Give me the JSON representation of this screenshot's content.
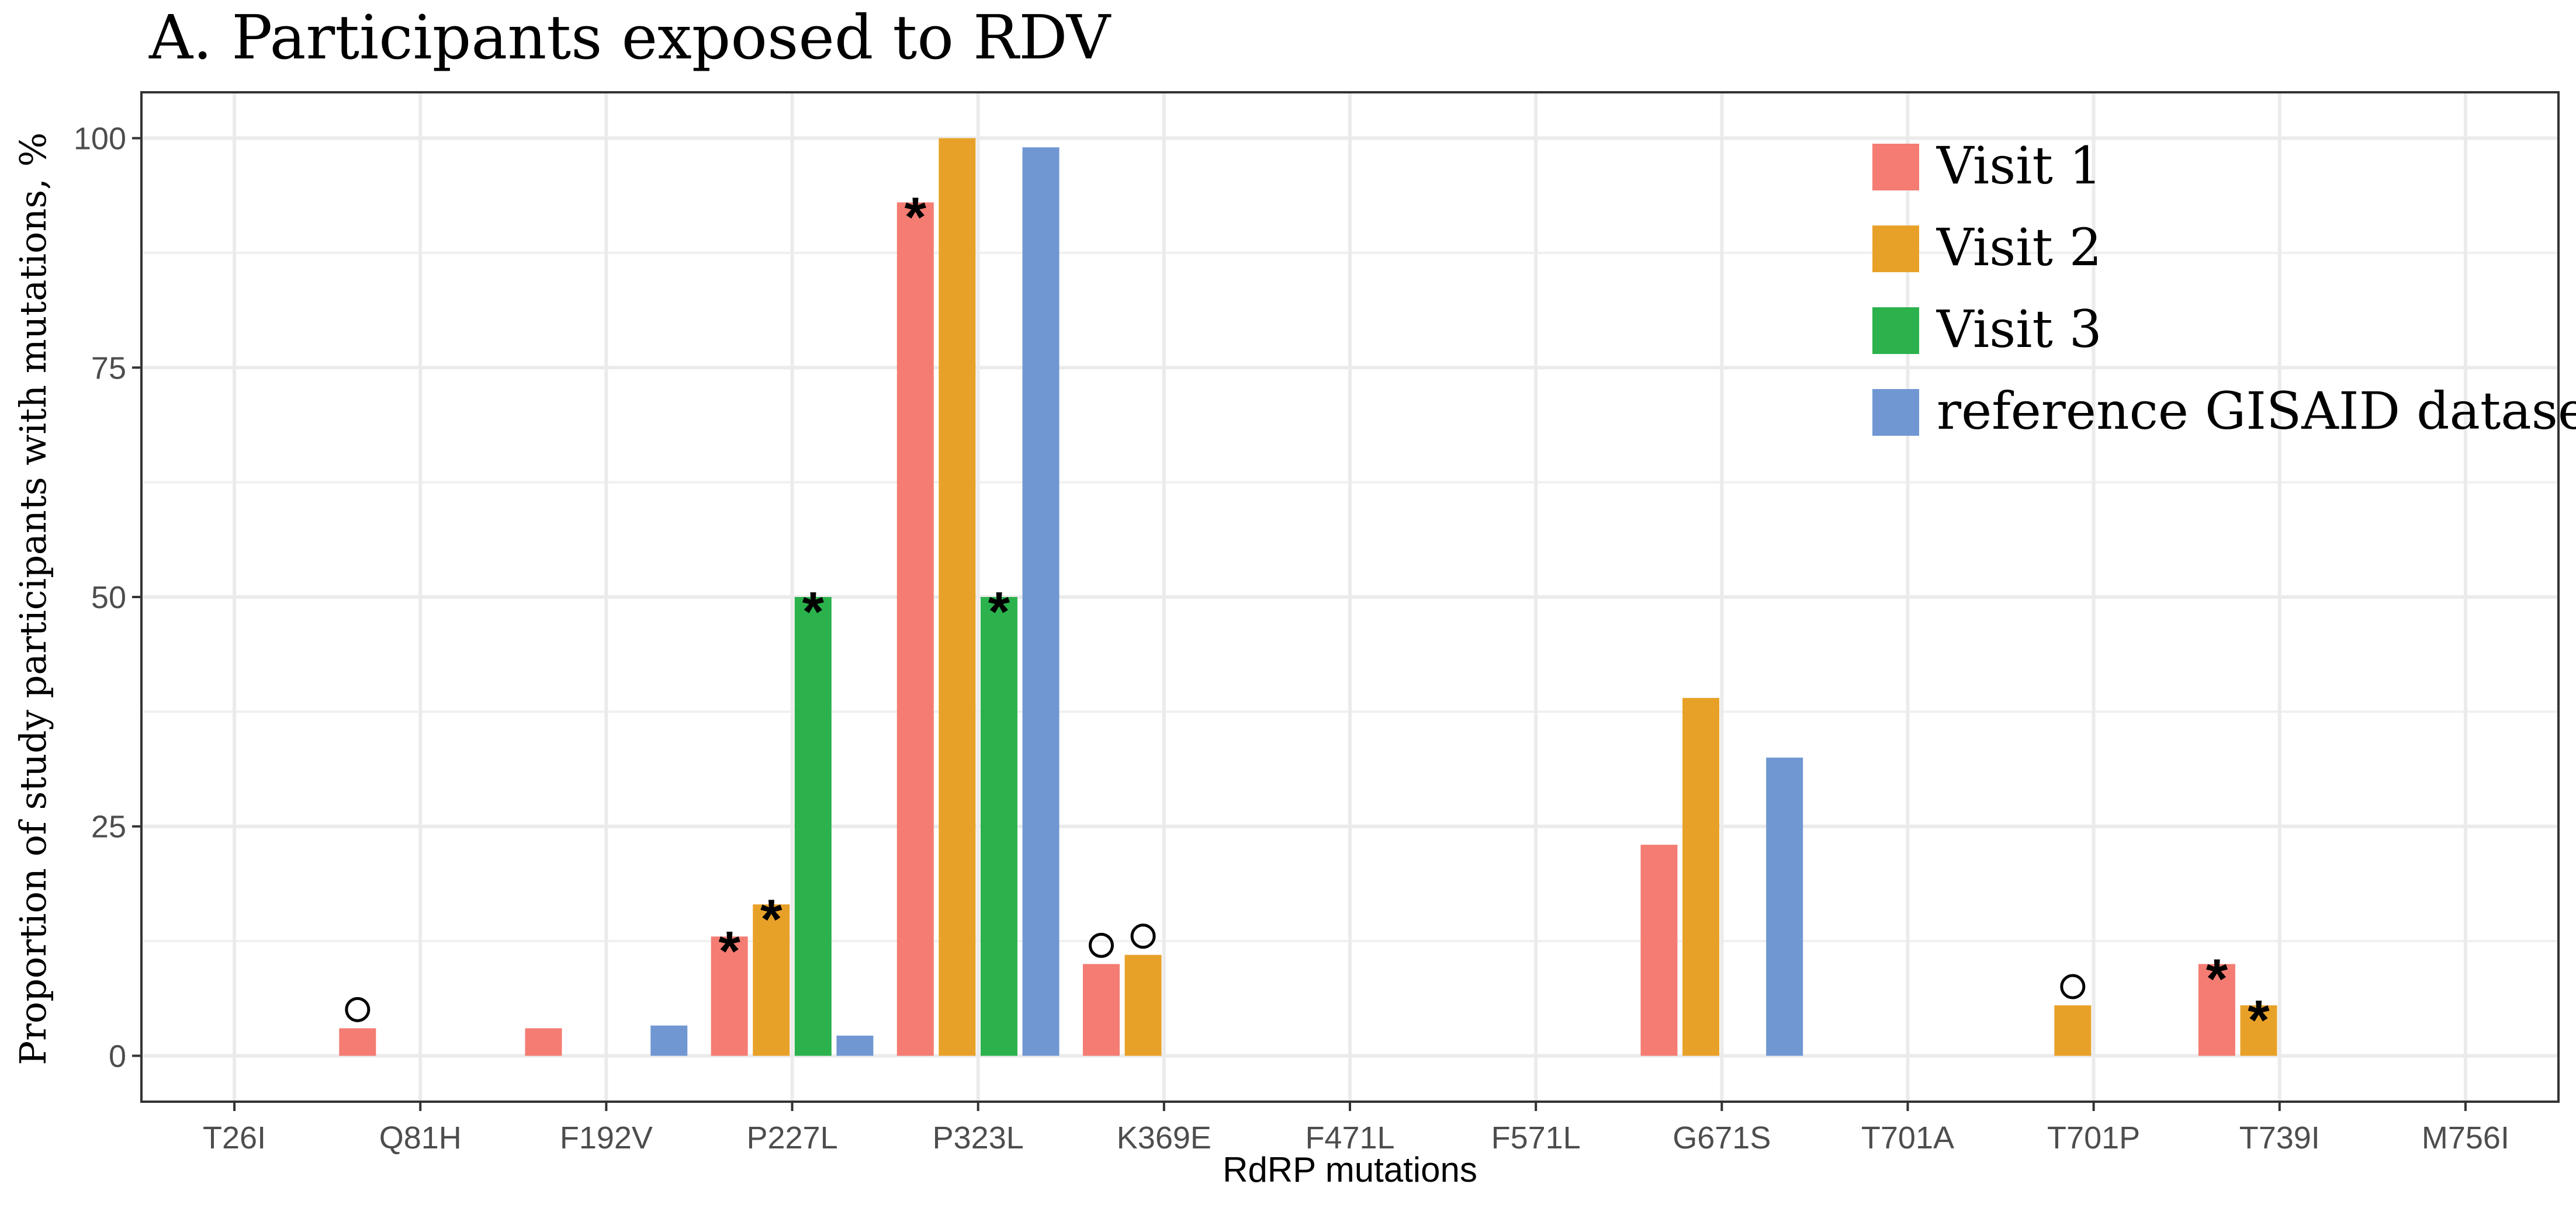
{
  "chart_data": {
    "type": "bar",
    "title": "A. Participants exposed to RDV",
    "xlabel": "RdRP mutations",
    "ylabel": "Proportion of study participants with mutations, %",
    "ylim": [
      -5,
      105
    ],
    "yticks": [
      0,
      25,
      50,
      75,
      100
    ],
    "grid": true,
    "legend_position": "top-right",
    "categories": [
      "T26I",
      "Q81H",
      "F192V",
      "P227L",
      "P323L",
      "K369E",
      "F471L",
      "F571L",
      "G671S",
      "T701A",
      "T701P",
      "T739I",
      "M756I"
    ],
    "series": [
      {
        "name": "Visit 1",
        "color": "#F47C72",
        "values": [
          null,
          3,
          3,
          13,
          93,
          10,
          null,
          null,
          23,
          null,
          null,
          10,
          null
        ]
      },
      {
        "name": "Visit 2",
        "color": "#E8A128",
        "values": [
          null,
          null,
          null,
          16.5,
          100,
          11,
          null,
          null,
          39,
          null,
          5.5,
          5.5,
          null
        ]
      },
      {
        "name": "Visit 3",
        "color": "#2BB24C",
        "values": [
          null,
          null,
          null,
          50,
          50,
          null,
          null,
          null,
          null,
          null,
          null,
          null,
          null
        ]
      },
      {
        "name": "reference GISAID dataset",
        "color": "#7097D1",
        "values": [
          null,
          null,
          3.3,
          2.2,
          99,
          null,
          null,
          null,
          32.5,
          null,
          null,
          null,
          null
        ]
      }
    ],
    "annotations": [
      {
        "category": "Q81H",
        "series": "Visit 1",
        "symbol": "circle"
      },
      {
        "category": "P227L",
        "series": "Visit 1",
        "symbol": "*"
      },
      {
        "category": "P227L",
        "series": "Visit 2",
        "symbol": "*"
      },
      {
        "category": "P227L",
        "series": "Visit 3",
        "symbol": "*"
      },
      {
        "category": "P323L",
        "series": "Visit 1",
        "symbol": "*"
      },
      {
        "category": "P323L",
        "series": "Visit 3",
        "symbol": "*"
      },
      {
        "category": "K369E",
        "series": "Visit 1",
        "symbol": "circle"
      },
      {
        "category": "K369E",
        "series": "Visit 2",
        "symbol": "circle"
      },
      {
        "category": "T701P",
        "series": "Visit 2",
        "symbol": "circle"
      },
      {
        "category": "T739I",
        "series": "Visit 1",
        "symbol": "*"
      },
      {
        "category": "T739I",
        "series": "Visit 2",
        "symbol": "*"
      }
    ]
  }
}
